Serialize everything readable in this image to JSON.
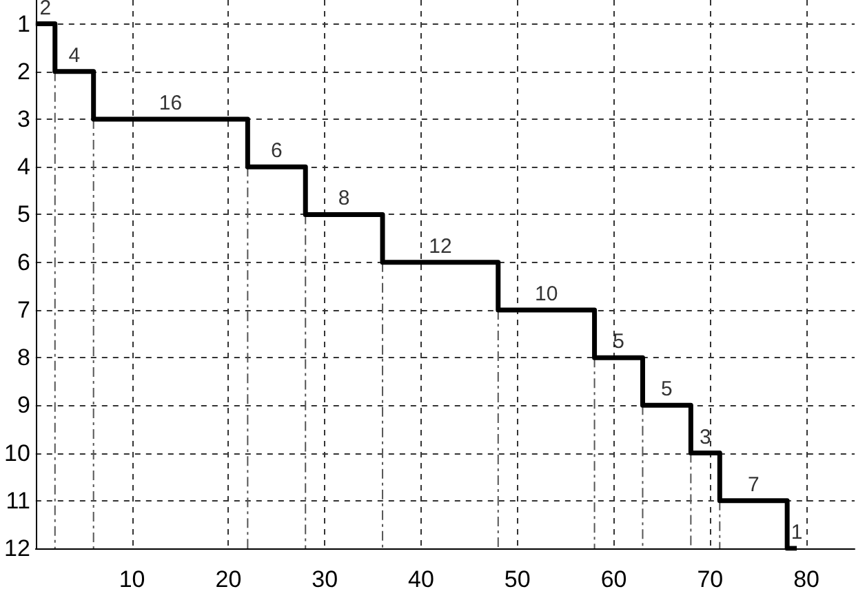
{
  "chart_data": {
    "type": "step",
    "x": [
      0,
      2,
      6,
      22,
      28,
      36,
      48,
      58,
      63,
      68,
      71,
      78,
      79
    ],
    "values": [
      1,
      2,
      3,
      4,
      5,
      6,
      7,
      8,
      9,
      10,
      11,
      12,
      12
    ],
    "color": "#000000",
    "xlim": [
      0,
      85
    ],
    "xticks": [
      10,
      20,
      30,
      40,
      50,
      60,
      70,
      80
    ],
    "ylim": [
      12,
      0.5
    ],
    "yticks": [
      1,
      2,
      3,
      4,
      5,
      6,
      7,
      8,
      9,
      10,
      11,
      12
    ],
    "grid": true,
    "marker": "none",
    "line_style": "solid",
    "annotations": [
      {
        "text": "2",
        "x": 1,
        "y": 1
      },
      {
        "text": "4",
        "x": 4,
        "y": 2
      },
      {
        "text": "16",
        "x": 14,
        "y": 3
      },
      {
        "text": "6",
        "x": 25,
        "y": 4
      },
      {
        "text": "8",
        "x": 32,
        "y": 5
      },
      {
        "text": "12",
        "x": 42,
        "y": 6
      },
      {
        "text": "10",
        "x": 53,
        "y": 7
      },
      {
        "text": "5",
        "x": 60.5,
        "y": 8
      },
      {
        "text": "5",
        "x": 65.5,
        "y": 9
      },
      {
        "text": "3",
        "x": 69.5,
        "y": 10
      },
      {
        "text": "7",
        "x": 74.5,
        "y": 11
      },
      {
        "text": "1",
        "x": 79,
        "y": 12
      }
    ],
    "ref_lines": [
      {
        "axis": "x",
        "value": 2,
        "line_style": "dashed",
        "color": "#555555"
      },
      {
        "axis": "x",
        "value": 6,
        "line_style": "dashed",
        "color": "#555555"
      },
      {
        "axis": "x",
        "value": 22,
        "line_style": "dashed",
        "color": "#555555"
      },
      {
        "axis": "x",
        "value": 28,
        "line_style": "dashed",
        "color": "#555555"
      },
      {
        "axis": "x",
        "value": 36,
        "line_style": "dashed",
        "color": "#555555"
      },
      {
        "axis": "x",
        "value": 48,
        "line_style": "dashed",
        "color": "#555555"
      },
      {
        "axis": "x",
        "value": 58,
        "line_style": "dashed",
        "color": "#555555"
      },
      {
        "axis": "x",
        "value": 63,
        "line_style": "dashed",
        "color": "#555555"
      },
      {
        "axis": "x",
        "value": 68,
        "line_style": "dashed",
        "color": "#555555"
      },
      {
        "axis": "x",
        "value": 71,
        "line_style": "dashed",
        "color": "#555555"
      }
    ]
  }
}
